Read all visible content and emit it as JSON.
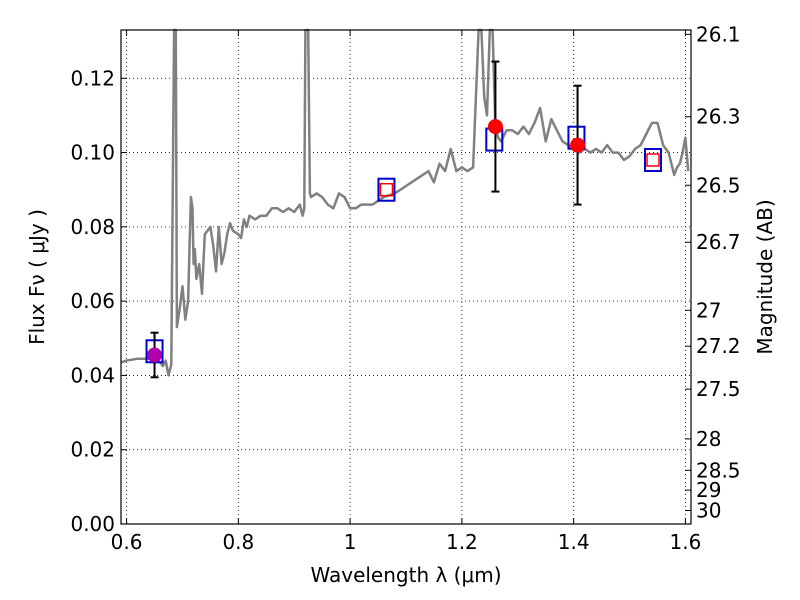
{
  "chart_data": {
    "type": "line",
    "xlabel": "Wavelength  λ (μm)",
    "ylabel": "Flux  Fν  ( μJy )",
    "ylabel_right": "Magnitude (AB)",
    "xlim": [
      0.59,
      1.61
    ],
    "ylim": [
      0.0,
      0.133
    ],
    "grid": true,
    "x_ticks": [
      0.6,
      0.8,
      1.0,
      1.2,
      1.4,
      1.6
    ],
    "x_tick_labels": [
      "0.6",
      "0.8",
      "1",
      "1.2",
      "1.4",
      "1.6"
    ],
    "y_ticks": [
      0.0,
      0.02,
      0.04,
      0.06,
      0.08,
      0.1,
      0.12
    ],
    "y_tick_labels": [
      "0.00",
      "0.02",
      "0.04",
      "0.06",
      "0.08",
      "0.10",
      "0.12"
    ],
    "mag_ticks": [
      26.1,
      26.3,
      26.5,
      26.7,
      27,
      27.2,
      27.5,
      28,
      28.5,
      29,
      30
    ],
    "mag_tick_labels": [
      "26.1",
      "26.3",
      "26.5",
      "26.7",
      "27",
      "27.2",
      "27.5",
      "28",
      "28.5",
      "29",
      "30"
    ],
    "colors": {
      "spectrum": "#808080",
      "model_box": "#0000cc",
      "observed": "#ff0000",
      "observed_first": "#b000b0",
      "errorbar": "#000000"
    },
    "spectrum": {
      "x": [
        0.59,
        0.6,
        0.62,
        0.64,
        0.655,
        0.665,
        0.67,
        0.675,
        0.68,
        0.685,
        0.688,
        0.69,
        0.692,
        0.695,
        0.7,
        0.705,
        0.71,
        0.715,
        0.718,
        0.72,
        0.722,
        0.725,
        0.73,
        0.735,
        0.74,
        0.745,
        0.75,
        0.755,
        0.76,
        0.765,
        0.77,
        0.775,
        0.78,
        0.785,
        0.79,
        0.8,
        0.805,
        0.81,
        0.815,
        0.82,
        0.83,
        0.84,
        0.85,
        0.86,
        0.87,
        0.88,
        0.89,
        0.9,
        0.91,
        0.915,
        0.918,
        0.92,
        0.922,
        0.925,
        0.928,
        0.93,
        0.94,
        0.95,
        0.96,
        0.97,
        0.98,
        0.99,
        1.0,
        1.01,
        1.02,
        1.04,
        1.06,
        1.08,
        1.1,
        1.12,
        1.13,
        1.14,
        1.15,
        1.16,
        1.17,
        1.18,
        1.19,
        1.2,
        1.21,
        1.22,
        1.23,
        1.235,
        1.24,
        1.245,
        1.25,
        1.255,
        1.26,
        1.265,
        1.27,
        1.28,
        1.29,
        1.3,
        1.31,
        1.32,
        1.33,
        1.34,
        1.35,
        1.36,
        1.37,
        1.38,
        1.39,
        1.4,
        1.41,
        1.42,
        1.43,
        1.44,
        1.45,
        1.46,
        1.47,
        1.48,
        1.49,
        1.5,
        1.51,
        1.52,
        1.53,
        1.54,
        1.55,
        1.56,
        1.57,
        1.575,
        1.58,
        1.585,
        1.59,
        1.595,
        1.6,
        1.605
      ],
      "y": [
        0.0435,
        0.044,
        0.0445,
        0.0445,
        0.0445,
        0.0425,
        0.044,
        0.04,
        0.043,
        0.133,
        0.133,
        0.053,
        0.055,
        0.058,
        0.064,
        0.055,
        0.06,
        0.088,
        0.085,
        0.07,
        0.074,
        0.066,
        0.07,
        0.062,
        0.078,
        0.079,
        0.08,
        0.075,
        0.068,
        0.08,
        0.07,
        0.073,
        0.078,
        0.081,
        0.079,
        0.078,
        0.077,
        0.082,
        0.08,
        0.083,
        0.082,
        0.083,
        0.083,
        0.085,
        0.085,
        0.084,
        0.085,
        0.084,
        0.086,
        0.083,
        0.085,
        0.133,
        0.133,
        0.133,
        0.089,
        0.088,
        0.089,
        0.088,
        0.086,
        0.085,
        0.089,
        0.088,
        0.085,
        0.085,
        0.086,
        0.086,
        0.088,
        0.089,
        0.091,
        0.093,
        0.094,
        0.095,
        0.092,
        0.097,
        0.095,
        0.101,
        0.095,
        0.096,
        0.095,
        0.096,
        0.133,
        0.133,
        0.115,
        0.11,
        0.133,
        0.133,
        0.107,
        0.104,
        0.103,
        0.106,
        0.106,
        0.105,
        0.107,
        0.105,
        0.108,
        0.112,
        0.103,
        0.109,
        0.106,
        0.103,
        0.102,
        0.101,
        0.1,
        0.101,
        0.1,
        0.101,
        0.1,
        0.102,
        0.1,
        0.1,
        0.098,
        0.099,
        0.101,
        0.102,
        0.105,
        0.108,
        0.108,
        0.102,
        0.1,
        0.097,
        0.094,
        0.096,
        0.097,
        0.1,
        0.104,
        0.095
      ]
    },
    "model": [
      {
        "x": 0.65,
        "y": 0.0465
      },
      {
        "x": 1.065,
        "y": 0.09
      },
      {
        "x": 1.258,
        "y": 0.1035
      },
      {
        "x": 1.405,
        "y": 0.104
      },
      {
        "x": 1.542,
        "y": 0.098
      }
    ],
    "observed": [
      {
        "x": 0.65,
        "y": 0.0455,
        "err_low": 0.0395,
        "err_high": 0.0515,
        "marker": "circle-purple"
      },
      {
        "x": 1.065,
        "y": 0.09,
        "marker": "open-square-red"
      },
      {
        "x": 1.26,
        "y": 0.107,
        "err_low": 0.0895,
        "err_high": 0.1245,
        "marker": "circle"
      },
      {
        "x": 1.407,
        "y": 0.102,
        "err_low": 0.086,
        "err_high": 0.118,
        "marker": "circle"
      },
      {
        "x": 1.542,
        "y": 0.098,
        "marker": "open-square-red"
      }
    ]
  }
}
